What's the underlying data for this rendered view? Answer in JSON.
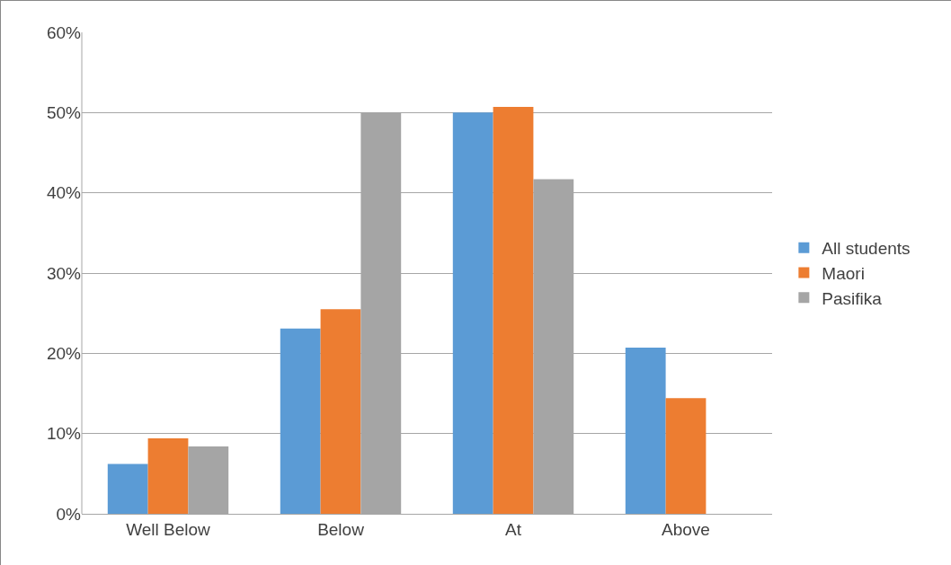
{
  "chart_data": {
    "type": "bar",
    "categories": [
      "Well Below",
      "Below",
      "At",
      "Above"
    ],
    "series": [
      {
        "name": "All students",
        "color": "#5b9bd5",
        "values": [
          6.2,
          23.1,
          50,
          20.7
        ]
      },
      {
        "name": "Maori",
        "color": "#ed7d31",
        "values": [
          9.4,
          25.5,
          50.7,
          14.4
        ]
      },
      {
        "name": "Pasifika",
        "color": "#a5a5a5",
        "values": [
          8.4,
          50,
          41.7,
          0
        ]
      }
    ],
    "ylim": [
      0,
      60
    ],
    "yticks": [
      {
        "value": 0,
        "label": "0%"
      },
      {
        "value": 10,
        "label": "10%"
      },
      {
        "value": 20,
        "label": "20%"
      },
      {
        "value": 30,
        "label": "30%"
      },
      {
        "value": 40,
        "label": "40%"
      },
      {
        "value": 50,
        "label": "50%"
      },
      {
        "value": 60,
        "label": "60%"
      }
    ],
    "grid": "y",
    "legend": "right"
  }
}
